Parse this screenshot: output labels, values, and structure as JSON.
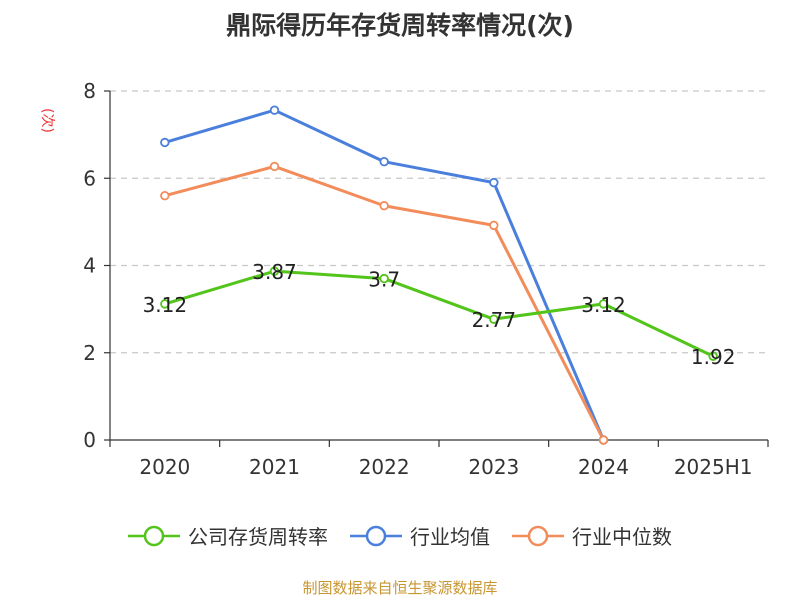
{
  "chart_data": {
    "type": "line",
    "title": "鼎际得历年存货周转率情况(次)",
    "yunit": "(次)",
    "categories": [
      "2020",
      "2021",
      "2022",
      "2023",
      "2024",
      "2025H1"
    ],
    "ylim": [
      0,
      8
    ],
    "yticks": [
      "0",
      "2",
      "4",
      "6",
      "8"
    ],
    "grid": true,
    "legend_position": "bottom",
    "series": [
      {
        "name": "公司存货周转率",
        "color": "#52c41a",
        "values": [
          3.12,
          3.87,
          3.7,
          2.77,
          3.12,
          1.92
        ],
        "labels": [
          "3.12",
          "3.87",
          "3.7",
          "2.77",
          "3.12",
          "1.92"
        ]
      },
      {
        "name": "行业均值",
        "color": "#4a7fdc",
        "values": [
          6.82,
          7.56,
          6.38,
          5.9,
          0,
          null
        ]
      },
      {
        "name": "行业中位数",
        "color": "#f28c5a",
        "values": [
          5.6,
          6.27,
          5.37,
          4.92,
          0,
          null
        ]
      }
    ]
  },
  "source": "制图数据来自恒生聚源数据库"
}
